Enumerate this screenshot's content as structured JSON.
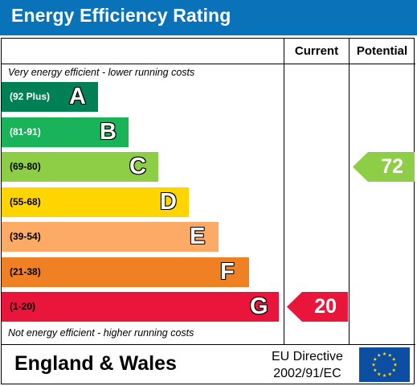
{
  "title": "Energy Efficiency Rating",
  "columns": {
    "current": "Current",
    "potential": "Potential"
  },
  "notes": {
    "top": "Very energy efficient - lower running costs",
    "bottom": "Not energy efficient - higher running costs"
  },
  "footer": {
    "region": "England & Wales",
    "directive_line1": "EU Directive",
    "directive_line2": "2002/91/EC"
  },
  "chart_data": {
    "type": "bar",
    "categories": [
      "A",
      "B",
      "C",
      "D",
      "E",
      "F",
      "G"
    ],
    "ranges": [
      "(92 Plus)",
      "(81-91)",
      "(69-80)",
      "(55-68)",
      "(39-54)",
      "(21-38)",
      "(1-20)"
    ],
    "colors": [
      "#008054",
      "#19b459",
      "#8dce46",
      "#ffd500",
      "#fcaa65",
      "#ef8023",
      "#e9153b"
    ],
    "range_text_colors": [
      "#ffffff",
      "#ffffff",
      "#000000",
      "#000000",
      "#000000",
      "#000000",
      "#000000"
    ],
    "current": {
      "value": 20,
      "band": "G",
      "color": "#e9153b"
    },
    "potential": {
      "value": 72,
      "band": "C",
      "color": "#8dce46"
    }
  }
}
